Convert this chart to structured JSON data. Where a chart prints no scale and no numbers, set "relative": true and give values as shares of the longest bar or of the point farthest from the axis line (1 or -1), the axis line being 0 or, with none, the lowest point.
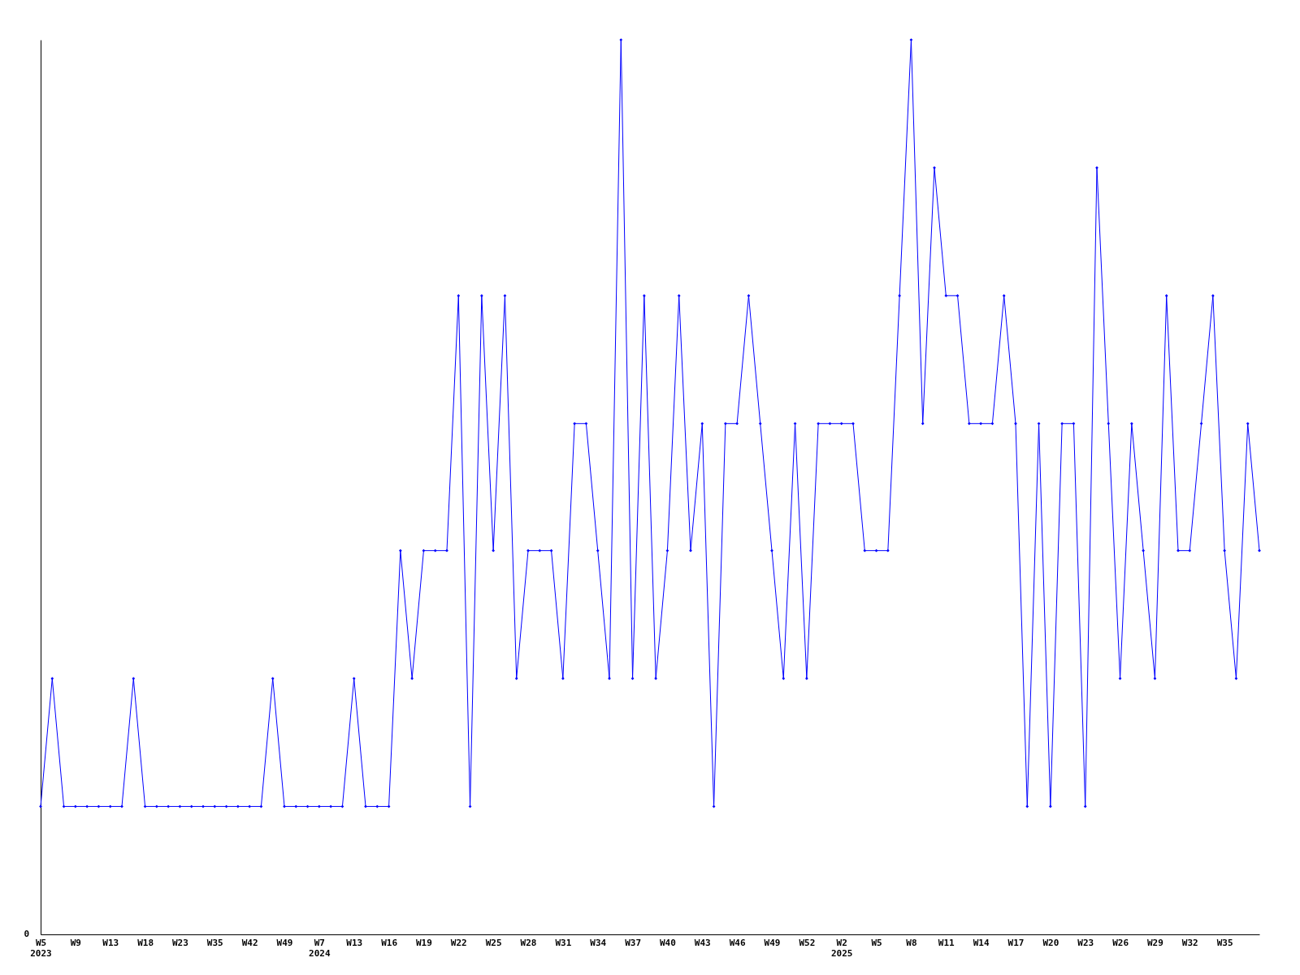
{
  "chart_data": {
    "type": "line",
    "relative": true,
    "color": "#0000ff",
    "marker": "diamond",
    "grid": false,
    "annotations": [
      "0"
    ],
    "categories": [
      "W5\n2023",
      null,
      null,
      "W9",
      null,
      null,
      "W13",
      null,
      null,
      "W18",
      null,
      null,
      "W23",
      null,
      null,
      "W35",
      null,
      null,
      "W42",
      null,
      null,
      "W49",
      null,
      null,
      "W7\n2024",
      null,
      null,
      "W13",
      null,
      null,
      "W16",
      null,
      null,
      "W19",
      null,
      null,
      "W22",
      null,
      null,
      "W25",
      null,
      null,
      "W28",
      null,
      null,
      "W31",
      null,
      null,
      "W34",
      null,
      null,
      "W37",
      null,
      null,
      "W40",
      null,
      null,
      "W43",
      null,
      null,
      "W46",
      null,
      null,
      "W49",
      null,
      null,
      "W52",
      null,
      null,
      "W2\n2025",
      null,
      null,
      "W5",
      null,
      null,
      "W8",
      null,
      null,
      "W11",
      null,
      null,
      "W14",
      null,
      null,
      "W17",
      null,
      null,
      "W20",
      null,
      null,
      "W23",
      null,
      null,
      "W26",
      null,
      null,
      "W29",
      null,
      null,
      "W32",
      null,
      null,
      "W35",
      null,
      null,
      null
    ],
    "values": [
      0.143,
      0.286,
      0.143,
      0.143,
      0.143,
      0.143,
      0.143,
      0.143,
      0.286,
      0.143,
      0.143,
      0.143,
      0.143,
      0.143,
      0.143,
      0.143,
      0.143,
      0.143,
      0.143,
      0.143,
      0.286,
      0.143,
      0.143,
      0.143,
      0.143,
      0.143,
      0.143,
      0.286,
      0.143,
      0.143,
      0.143,
      0.429,
      0.286,
      0.429,
      0.429,
      0.429,
      0.714,
      0.143,
      0.714,
      0.429,
      0.714,
      0.286,
      0.429,
      0.429,
      0.429,
      0.286,
      0.571,
      0.571,
      0.429,
      0.286,
      1,
      0.286,
      0.714,
      0.286,
      0.429,
      0.714,
      0.429,
      0.571,
      0.143,
      0.571,
      0.571,
      0.714,
      0.571,
      0.429,
      0.286,
      0.571,
      0.286,
      0.571,
      0.571,
      0.571,
      0.571,
      0.429,
      0.429,
      0.429,
      0.714,
      1,
      0.571,
      0.857,
      0.714,
      0.714,
      0.571,
      0.571,
      0.571,
      0.714,
      0.571,
      0.143,
      0.571,
      0.143,
      0.571,
      0.571,
      0.143,
      0.857,
      0.571,
      0.286,
      0.571,
      0.429,
      0.286,
      0.714,
      0.429,
      0.429,
      0.571,
      0.714,
      0.429,
      0.286,
      0.571,
      0.429
    ]
  }
}
